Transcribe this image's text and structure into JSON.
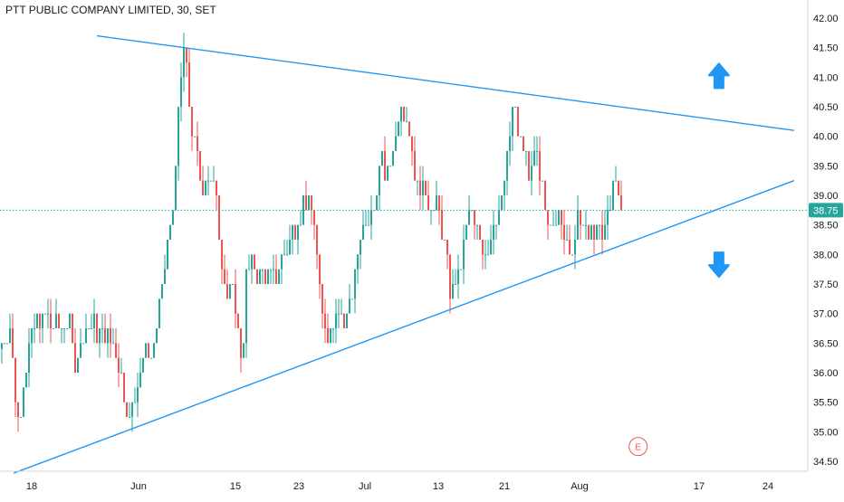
{
  "header": {
    "title": "PTT PUBLIC COMPANY LIMITED, 30, SET"
  },
  "chart_data": {
    "type": "candlestick",
    "price_axis": {
      "ticks": [
        "42.00",
        "41.50",
        "41.00",
        "40.50",
        "40.00",
        "39.50",
        "39.00",
        "38.50",
        "38.00",
        "37.50",
        "37.00",
        "36.50",
        "36.00",
        "35.50",
        "35.00",
        "34.50"
      ],
      "ylim": [
        34.35,
        42.2
      ],
      "current_price": "38.75"
    },
    "time_axis": {
      "ticks": [
        "18",
        "Jun",
        "15",
        "23",
        "Jul",
        "13",
        "21",
        "Aug",
        "17",
        "24"
      ]
    },
    "colors": {
      "up": "#26a69a",
      "down": "#ef5350",
      "trendline": "#2196f3",
      "price_badge": "#26a69a",
      "event_marker": "#ef5350"
    },
    "trendlines": [
      {
        "name": "resistance",
        "from": {
          "session": 12,
          "price": 41.7
        },
        "to": {
          "session": 98.3,
          "price": 40.1
        }
      },
      {
        "name": "support",
        "from": {
          "session": 1.7,
          "price": 34.3
        },
        "to": {
          "session": 98.3,
          "price": 39.25
        }
      }
    ],
    "annotations": [
      {
        "type": "arrow-up",
        "session": 89,
        "price": 41.0
      },
      {
        "type": "arrow-down",
        "session": 89,
        "price": 37.85
      },
      {
        "type": "event-marker",
        "label": "E",
        "session": 79,
        "price": 34.75
      }
    ]
  }
}
